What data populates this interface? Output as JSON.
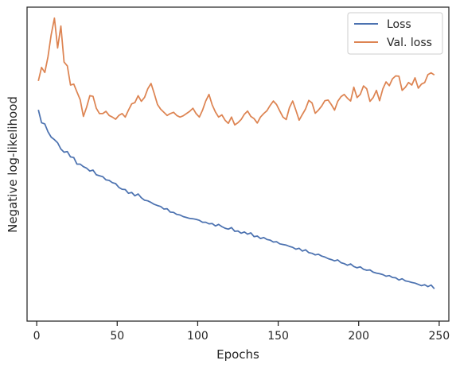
{
  "chart_data": {
    "type": "line",
    "title": "",
    "xlabel": "Epochs",
    "ylabel": "Negative log-likelihood",
    "xlim": [
      -6,
      256
    ],
    "ylim": [
      0,
      1
    ],
    "x_ticks": [
      0,
      50,
      100,
      150,
      200,
      250
    ],
    "y_ticks": [],
    "grid": false,
    "legend_position": "top-right",
    "series": [
      {
        "name": "Loss",
        "color": "#4c72b0",
        "x": [
          1,
          3,
          5,
          7,
          9,
          11,
          13,
          15,
          17,
          19,
          21,
          23,
          25,
          27,
          29,
          31,
          33,
          35,
          37,
          39,
          41,
          43,
          45,
          47,
          49,
          51,
          53,
          55,
          57,
          59,
          61,
          63,
          65,
          67,
          69,
          71,
          73,
          75,
          77,
          79,
          81,
          83,
          85,
          87,
          89,
          91,
          93,
          95,
          97,
          99,
          101,
          103,
          105,
          107,
          109,
          111,
          113,
          115,
          117,
          119,
          121,
          123,
          125,
          127,
          129,
          131,
          133,
          135,
          137,
          139,
          141,
          143,
          145,
          147,
          149,
          151,
          153,
          155,
          157,
          159,
          161,
          163,
          165,
          167,
          169,
          171,
          173,
          175,
          177,
          179,
          181,
          183,
          185,
          187,
          189,
          191,
          193,
          195,
          197,
          199,
          201,
          203,
          205,
          207,
          209,
          211,
          213,
          215,
          217,
          219,
          221,
          223,
          225,
          227,
          229,
          231,
          233,
          235,
          237,
          239,
          241,
          243,
          245,
          247
        ],
        "values": [
          0.673,
          0.632,
          0.628,
          0.603,
          0.586,
          0.578,
          0.568,
          0.548,
          0.538,
          0.54,
          0.523,
          0.521,
          0.5,
          0.5,
          0.492,
          0.487,
          0.478,
          0.481,
          0.466,
          0.463,
          0.46,
          0.45,
          0.448,
          0.441,
          0.438,
          0.426,
          0.42,
          0.419,
          0.407,
          0.41,
          0.399,
          0.405,
          0.393,
          0.385,
          0.383,
          0.378,
          0.372,
          0.368,
          0.365,
          0.357,
          0.358,
          0.347,
          0.346,
          0.34,
          0.338,
          0.333,
          0.33,
          0.327,
          0.326,
          0.324,
          0.321,
          0.315,
          0.315,
          0.31,
          0.311,
          0.303,
          0.308,
          0.301,
          0.296,
          0.293,
          0.298,
          0.286,
          0.287,
          0.28,
          0.284,
          0.277,
          0.281,
          0.269,
          0.271,
          0.263,
          0.266,
          0.26,
          0.258,
          0.252,
          0.253,
          0.246,
          0.244,
          0.242,
          0.238,
          0.235,
          0.229,
          0.232,
          0.223,
          0.227,
          0.218,
          0.216,
          0.211,
          0.213,
          0.207,
          0.204,
          0.199,
          0.196,
          0.192,
          0.195,
          0.186,
          0.183,
          0.178,
          0.182,
          0.174,
          0.17,
          0.173,
          0.165,
          0.162,
          0.163,
          0.156,
          0.153,
          0.151,
          0.148,
          0.143,
          0.145,
          0.139,
          0.138,
          0.131,
          0.135,
          0.128,
          0.126,
          0.123,
          0.121,
          0.117,
          0.113,
          0.116,
          0.11,
          0.115,
          0.103
        ]
      },
      {
        "name": "Val. loss",
        "color": "#dd8452",
        "x": [
          1,
          3,
          5,
          7,
          9,
          11,
          13,
          15,
          17,
          19,
          21,
          23,
          25,
          27,
          29,
          31,
          33,
          35,
          37,
          39,
          41,
          43,
          45,
          47,
          49,
          51,
          53,
          55,
          57,
          59,
          61,
          63,
          65,
          67,
          69,
          71,
          73,
          75,
          77,
          79,
          81,
          83,
          85,
          87,
          89,
          91,
          93,
          95,
          97,
          99,
          101,
          103,
          105,
          107,
          109,
          111,
          113,
          115,
          117,
          119,
          121,
          123,
          125,
          127,
          129,
          131,
          133,
          135,
          137,
          139,
          141,
          143,
          145,
          147,
          149,
          151,
          153,
          155,
          157,
          159,
          161,
          163,
          165,
          167,
          169,
          171,
          173,
          175,
          177,
          179,
          181,
          183,
          185,
          187,
          189,
          191,
          193,
          195,
          197,
          199,
          201,
          203,
          205,
          207,
          209,
          211,
          213,
          215,
          217,
          219,
          221,
          223,
          225,
          227,
          229,
          231,
          233,
          235,
          237,
          239,
          241,
          243,
          245,
          247
        ],
        "values": [
          0.765,
          0.808,
          0.792,
          0.842,
          0.912,
          0.965,
          0.87,
          0.94,
          0.825,
          0.813,
          0.752,
          0.755,
          0.73,
          0.705,
          0.652,
          0.681,
          0.718,
          0.716,
          0.678,
          0.661,
          0.661,
          0.668,
          0.655,
          0.65,
          0.643,
          0.655,
          0.661,
          0.65,
          0.672,
          0.692,
          0.696,
          0.718,
          0.7,
          0.713,
          0.74,
          0.757,
          0.725,
          0.69,
          0.675,
          0.665,
          0.655,
          0.661,
          0.665,
          0.655,
          0.65,
          0.654,
          0.661,
          0.668,
          0.678,
          0.661,
          0.65,
          0.672,
          0.701,
          0.722,
          0.689,
          0.666,
          0.65,
          0.657,
          0.64,
          0.63,
          0.65,
          0.625,
          0.632,
          0.642,
          0.659,
          0.669,
          0.652,
          0.645,
          0.631,
          0.65,
          0.661,
          0.67,
          0.687,
          0.701,
          0.69,
          0.669,
          0.65,
          0.642,
          0.68,
          0.701,
          0.672,
          0.64,
          0.658,
          0.676,
          0.703,
          0.695,
          0.662,
          0.672,
          0.685,
          0.702,
          0.704,
          0.69,
          0.672,
          0.7,
          0.715,
          0.722,
          0.71,
          0.701,
          0.745,
          0.712,
          0.722,
          0.749,
          0.74,
          0.7,
          0.712,
          0.735,
          0.702,
          0.74,
          0.762,
          0.75,
          0.772,
          0.781,
          0.78,
          0.735,
          0.745,
          0.76,
          0.752,
          0.775,
          0.742,
          0.755,
          0.76,
          0.785,
          0.791,
          0.784
        ]
      }
    ]
  }
}
